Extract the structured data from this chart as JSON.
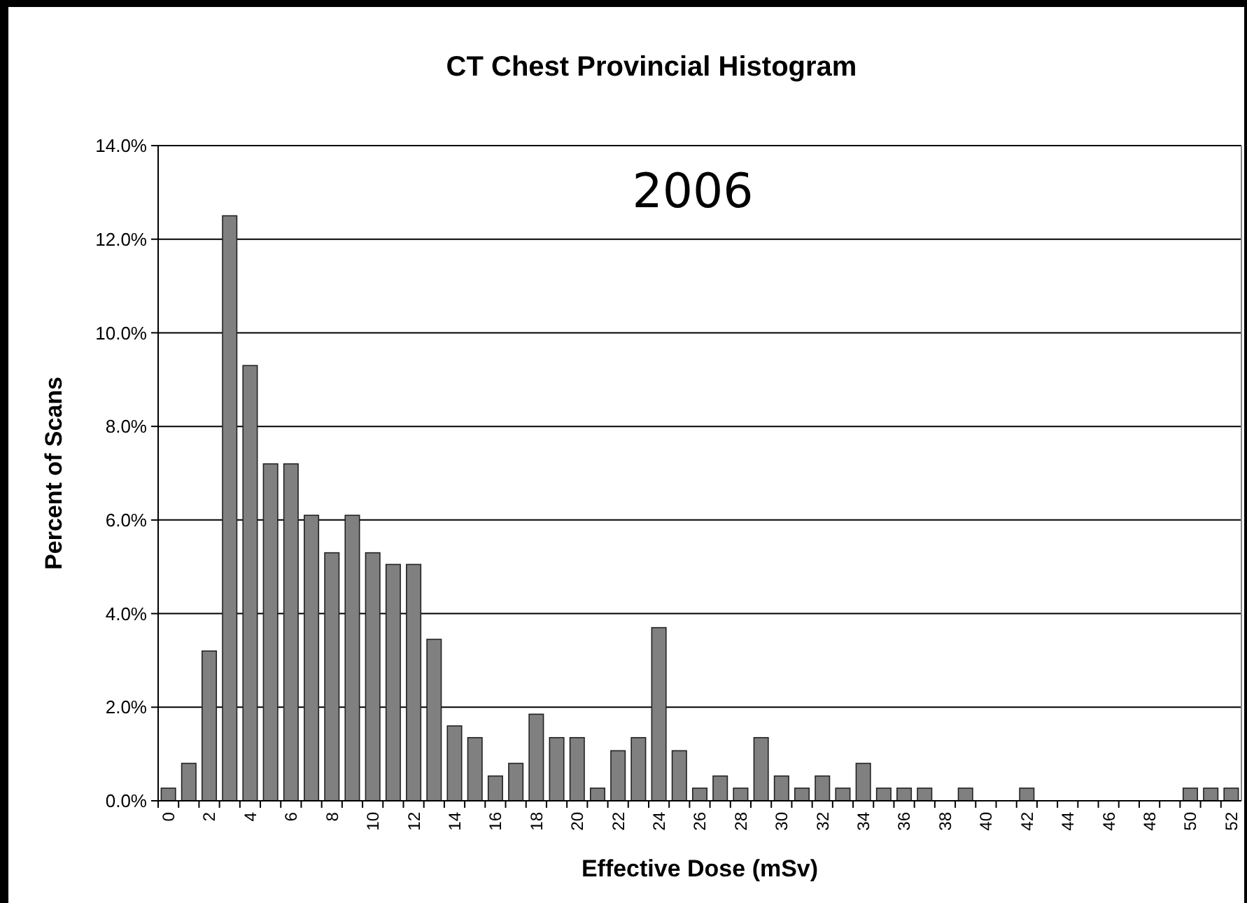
{
  "chart_data": {
    "type": "bar",
    "title": "CT Chest Provincial Histogram",
    "xlabel": "Effective Dose (mSv)",
    "ylabel": "Percent of Scans",
    "annotations": [
      "2006"
    ],
    "categories": [
      "0",
      null,
      "2",
      null,
      "4",
      null,
      "6",
      null,
      "8",
      null,
      "10",
      null,
      "12",
      null,
      "14",
      null,
      "16",
      null,
      "18",
      null,
      "20",
      null,
      "22",
      null,
      "24",
      null,
      "26",
      null,
      "28",
      null,
      "30",
      null,
      "32",
      null,
      "34",
      null,
      "36",
      null,
      "38",
      null,
      "40",
      null,
      "42",
      null,
      "44",
      null,
      "46",
      null,
      "48",
      null,
      "50",
      null,
      "52"
    ],
    "values": [
      0.27,
      0.8,
      3.2,
      12.5,
      9.3,
      7.2,
      7.2,
      6.1,
      5.3,
      6.1,
      5.3,
      5.05,
      5.05,
      3.45,
      1.6,
      1.35,
      0.53,
      0.8,
      1.85,
      1.35,
      1.35,
      0.27,
      1.07,
      1.35,
      3.7,
      1.07,
      0.27,
      0.53,
      0.27,
      1.35,
      0.53,
      0.27,
      0.53,
      0.27,
      0.8,
      0.27,
      0.27,
      0.27,
      0,
      0.27,
      0,
      0,
      0.27,
      0,
      0,
      0,
      0,
      0,
      0,
      0,
      0.27,
      0.27,
      0.27
    ],
    "color": "#808080",
    "ylim": [
      0,
      14
    ],
    "yticks": [
      {
        "value": 0,
        "label": "0.0%"
      },
      {
        "value": 2,
        "label": "2.0%"
      },
      {
        "value": 4,
        "label": "4.0%"
      },
      {
        "value": 6,
        "label": "6.0%"
      },
      {
        "value": 8,
        "label": "8.0%"
      },
      {
        "value": 10,
        "label": "10.0%"
      },
      {
        "value": 12,
        "label": "12.0%"
      },
      {
        "value": 14,
        "label": "14.0%"
      }
    ],
    "grid": "y"
  }
}
